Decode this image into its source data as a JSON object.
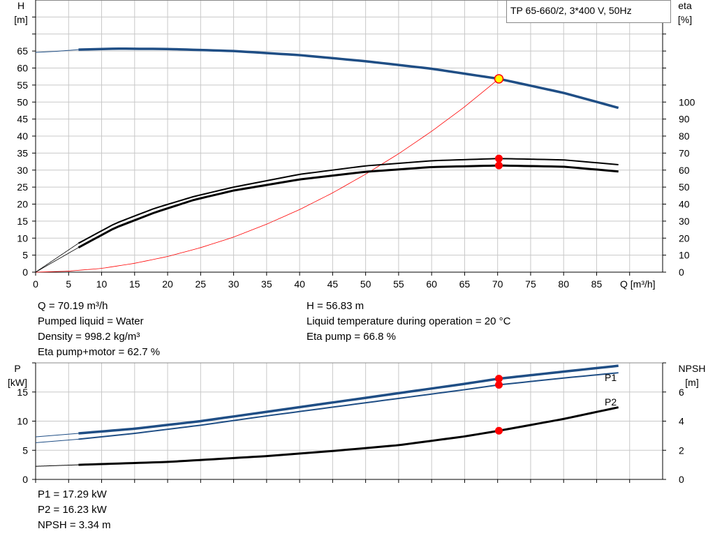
{
  "chart_data": [
    {
      "type": "line",
      "title": "TP 65-660/2, 3*400 V, 50Hz",
      "xlabel": "Q [m³/h]",
      "ylabel": "H",
      "ylabel_unit": "[m]",
      "y2label": "eta",
      "y2label_unit": "[%]",
      "xlim": [
        0,
        95
      ],
      "ylim": [
        0,
        80
      ],
      "y2lim": [
        0,
        160
      ],
      "x_ticks": [
        0,
        5,
        10,
        15,
        20,
        25,
        30,
        35,
        40,
        45,
        50,
        55,
        60,
        65,
        70,
        75,
        80,
        85
      ],
      "y_ticks": [
        0,
        5,
        10,
        15,
        20,
        25,
        30,
        35,
        40,
        45,
        50,
        55,
        60,
        65
      ],
      "y2_ticks": [
        0,
        10,
        20,
        30,
        40,
        50,
        60,
        70,
        80,
        90,
        100
      ],
      "grid": true,
      "operating_point": {
        "x": 70.19,
        "H": 56.83,
        "eta_pump": 66.8,
        "eta_pump_motor": 62.7
      },
      "series": [
        {
          "key": "H",
          "axis": "left",
          "color": "#1f4e85",
          "x": [
            0,
            3,
            6.5,
            12,
            20,
            30,
            40,
            50,
            60,
            70.19,
            80,
            88.3
          ],
          "y": [
            64.6,
            64.9,
            65.4,
            65.7,
            65.6,
            65.0,
            63.8,
            62.0,
            59.8,
            56.83,
            52.7,
            48.3
          ]
        },
        {
          "key": "eta_pump",
          "axis": "right",
          "color": "#000000",
          "x": [
            0,
            6.5,
            12,
            18,
            24,
            30,
            40,
            50,
            60,
            70.19,
            80,
            88.3
          ],
          "y": [
            0,
            17,
            28.5,
            37.5,
            44.5,
            50,
            57.5,
            62.5,
            65.5,
            66.8,
            66.0,
            63.2
          ]
        },
        {
          "key": "eta_pump_motor",
          "axis": "right",
          "color": "#000000",
          "x": [
            0,
            6.5,
            12,
            18,
            24,
            30,
            40,
            50,
            60,
            70.19,
            80,
            88.3
          ],
          "y": [
            0,
            14.5,
            26,
            35,
            42.5,
            48,
            54.5,
            59,
            61.8,
            62.7,
            62.0,
            59.2
          ]
        },
        {
          "key": "system_curve",
          "axis": "left",
          "color": "#ff0000",
          "x": [
            0,
            5,
            10,
            15,
            20,
            25,
            30,
            35,
            40,
            45,
            50,
            55,
            60,
            65,
            70.19
          ],
          "y": [
            0,
            0.3,
            1.1,
            2.6,
            4.6,
            7.2,
            10.3,
            14.1,
            18.4,
            23.3,
            28.8,
            34.8,
            41.4,
            48.6,
            56.83
          ]
        }
      ]
    },
    {
      "type": "line",
      "xlabel": "",
      "ylabel": "P",
      "ylabel_unit": "[kW]",
      "y2label": "NPSH",
      "y2label_unit": "[m]",
      "xlim": [
        0,
        95
      ],
      "ylim": [
        0,
        20
      ],
      "y2lim": [
        0,
        8
      ],
      "y_ticks": [
        0,
        5,
        10,
        15
      ],
      "y2_ticks": [
        0,
        2,
        4,
        6
      ],
      "grid": true,
      "series": [
        {
          "key": "P1",
          "name": "P1",
          "axis": "left",
          "color": "#1f4e85",
          "x": [
            0,
            6.5,
            15,
            25,
            35,
            45,
            55,
            65,
            70.19,
            80,
            88.3
          ],
          "y": [
            7.3,
            7.9,
            8.7,
            10.0,
            11.6,
            13.2,
            14.8,
            16.4,
            17.29,
            18.5,
            19.5
          ]
        },
        {
          "key": "P2",
          "name": "P2",
          "axis": "left",
          "color": "#1f4e85",
          "x": [
            0,
            6.5,
            15,
            25,
            35,
            45,
            55,
            65,
            70.19,
            80,
            88.3
          ],
          "y": [
            6.3,
            6.9,
            7.9,
            9.3,
            10.9,
            12.4,
            13.9,
            15.4,
            16.23,
            17.4,
            18.3
          ]
        },
        {
          "key": "NPSH",
          "axis": "right",
          "color": "#000000",
          "x": [
            0,
            6.5,
            20,
            35,
            45,
            55,
            65,
            70.19,
            80,
            88.3
          ],
          "y": [
            0.9,
            1.0,
            1.2,
            1.6,
            1.95,
            2.35,
            2.95,
            3.34,
            4.15,
            4.95
          ]
        }
      ]
    }
  ],
  "info_top": {
    "q": "Q = 70.19 m³/h",
    "liquid": "Pumped liquid = Water",
    "density": "Density = 998.2 kg/m³",
    "eta_pm": "Eta pump+motor = 62.7 %",
    "h": "H = 56.83 m",
    "temp": "Liquid temperature during operation = 20 °C",
    "eta_p": "Eta pump = 66.8 %"
  },
  "info_bottom": {
    "p1": "P1 = 17.29 kW",
    "p2": "P2 = 16.23 kW",
    "npsh": "NPSH = 3.34 m"
  },
  "colors": {
    "curve_blue": "#1f4e85",
    "system_red": "#ff0000",
    "point_red": "#ff0000",
    "point_yellow": "#ffff00",
    "grid": "#c8c8c8"
  }
}
